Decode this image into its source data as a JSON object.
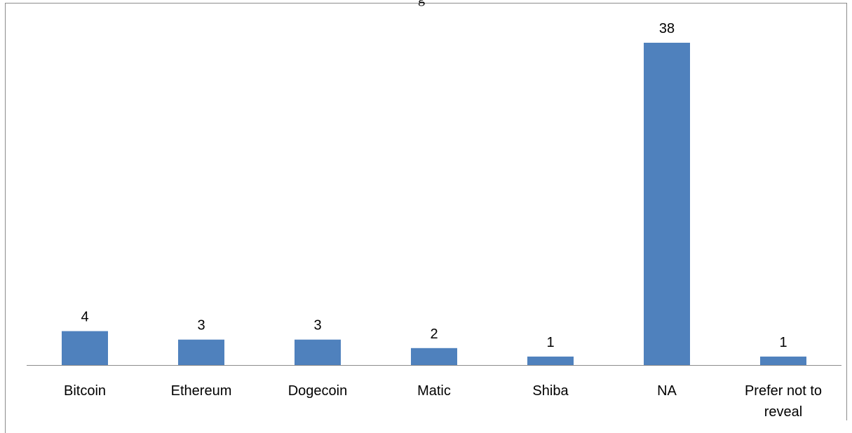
{
  "title_fragment": "g",
  "chart_data": {
    "type": "bar",
    "categories": [
      "Bitcoin",
      "Ethereum",
      "Dogecoin",
      "Matic",
      "Shiba",
      "NA",
      "Prefer not to reveal"
    ],
    "category_lines": [
      [
        "Bitcoin"
      ],
      [
        "Ethereum"
      ],
      [
        "Dogecoin"
      ],
      [
        "Matic"
      ],
      [
        "Shiba"
      ],
      [
        "NA"
      ],
      [
        "Prefer not to",
        "reveal"
      ]
    ],
    "values": [
      4,
      3,
      3,
      2,
      1,
      38,
      1
    ],
    "data_labels": [
      "4",
      "3",
      "3",
      "2",
      "1",
      "38",
      "1"
    ],
    "ylim": [
      0,
      38
    ],
    "grid": false,
    "legend": "none",
    "bar_color": "#4f81bd",
    "axis_color": "#8c8c8c"
  }
}
